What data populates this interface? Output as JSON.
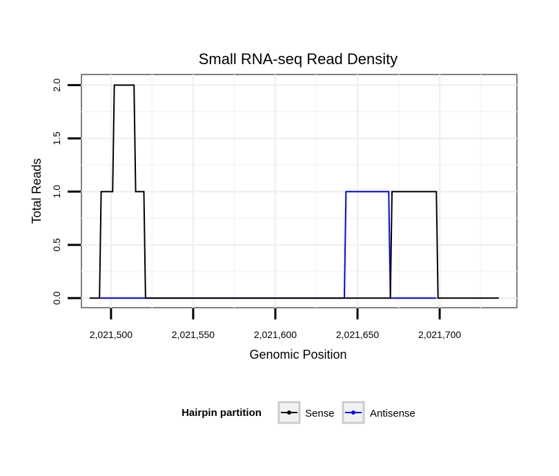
{
  "chart_data": {
    "type": "line",
    "title": "Small RNA-seq Read Density",
    "xlabel": "Genomic Position",
    "ylabel": "Total Reads",
    "xlim": [
      2021482,
      2021747
    ],
    "ylim": [
      -0.09,
      2.1
    ],
    "x_ticks": [
      2021500,
      2021550,
      2021600,
      2021650,
      2021700
    ],
    "x_tick_labels": [
      "2,021,500",
      "2,021,550",
      "2,021,600",
      "2,021,650",
      "2,021,700"
    ],
    "y_ticks": [
      0,
      0.5,
      1,
      1.5,
      2
    ],
    "y_tick_labels": [
      "0.0",
      "0.5",
      "1.0",
      "1.5",
      "2.0"
    ],
    "grid": true,
    "legend": {
      "title": "Hairpin partition",
      "position": "bottom"
    },
    "series": [
      {
        "name": "Sense",
        "color": "#000000",
        "points": [
          [
            2021487,
            0
          ],
          [
            2021493,
            0
          ],
          [
            2021494,
            1
          ],
          [
            2021501,
            1
          ],
          [
            2021502,
            2
          ],
          [
            2021514,
            2
          ],
          [
            2021515,
            1
          ],
          [
            2021520,
            1
          ],
          [
            2021521,
            0
          ],
          [
            2021670,
            0
          ],
          [
            2021671,
            1
          ],
          [
            2021698,
            1
          ],
          [
            2021699,
            0
          ],
          [
            2021736,
            0
          ]
        ]
      },
      {
        "name": "Antisense",
        "color": "#0000ff",
        "points": [
          [
            2021493,
            0
          ],
          [
            2021520,
            0
          ],
          [
            2021642,
            0
          ],
          [
            2021643,
            1
          ],
          [
            2021669,
            1
          ],
          [
            2021670,
            0
          ],
          [
            2021698,
            0
          ]
        ]
      }
    ]
  }
}
